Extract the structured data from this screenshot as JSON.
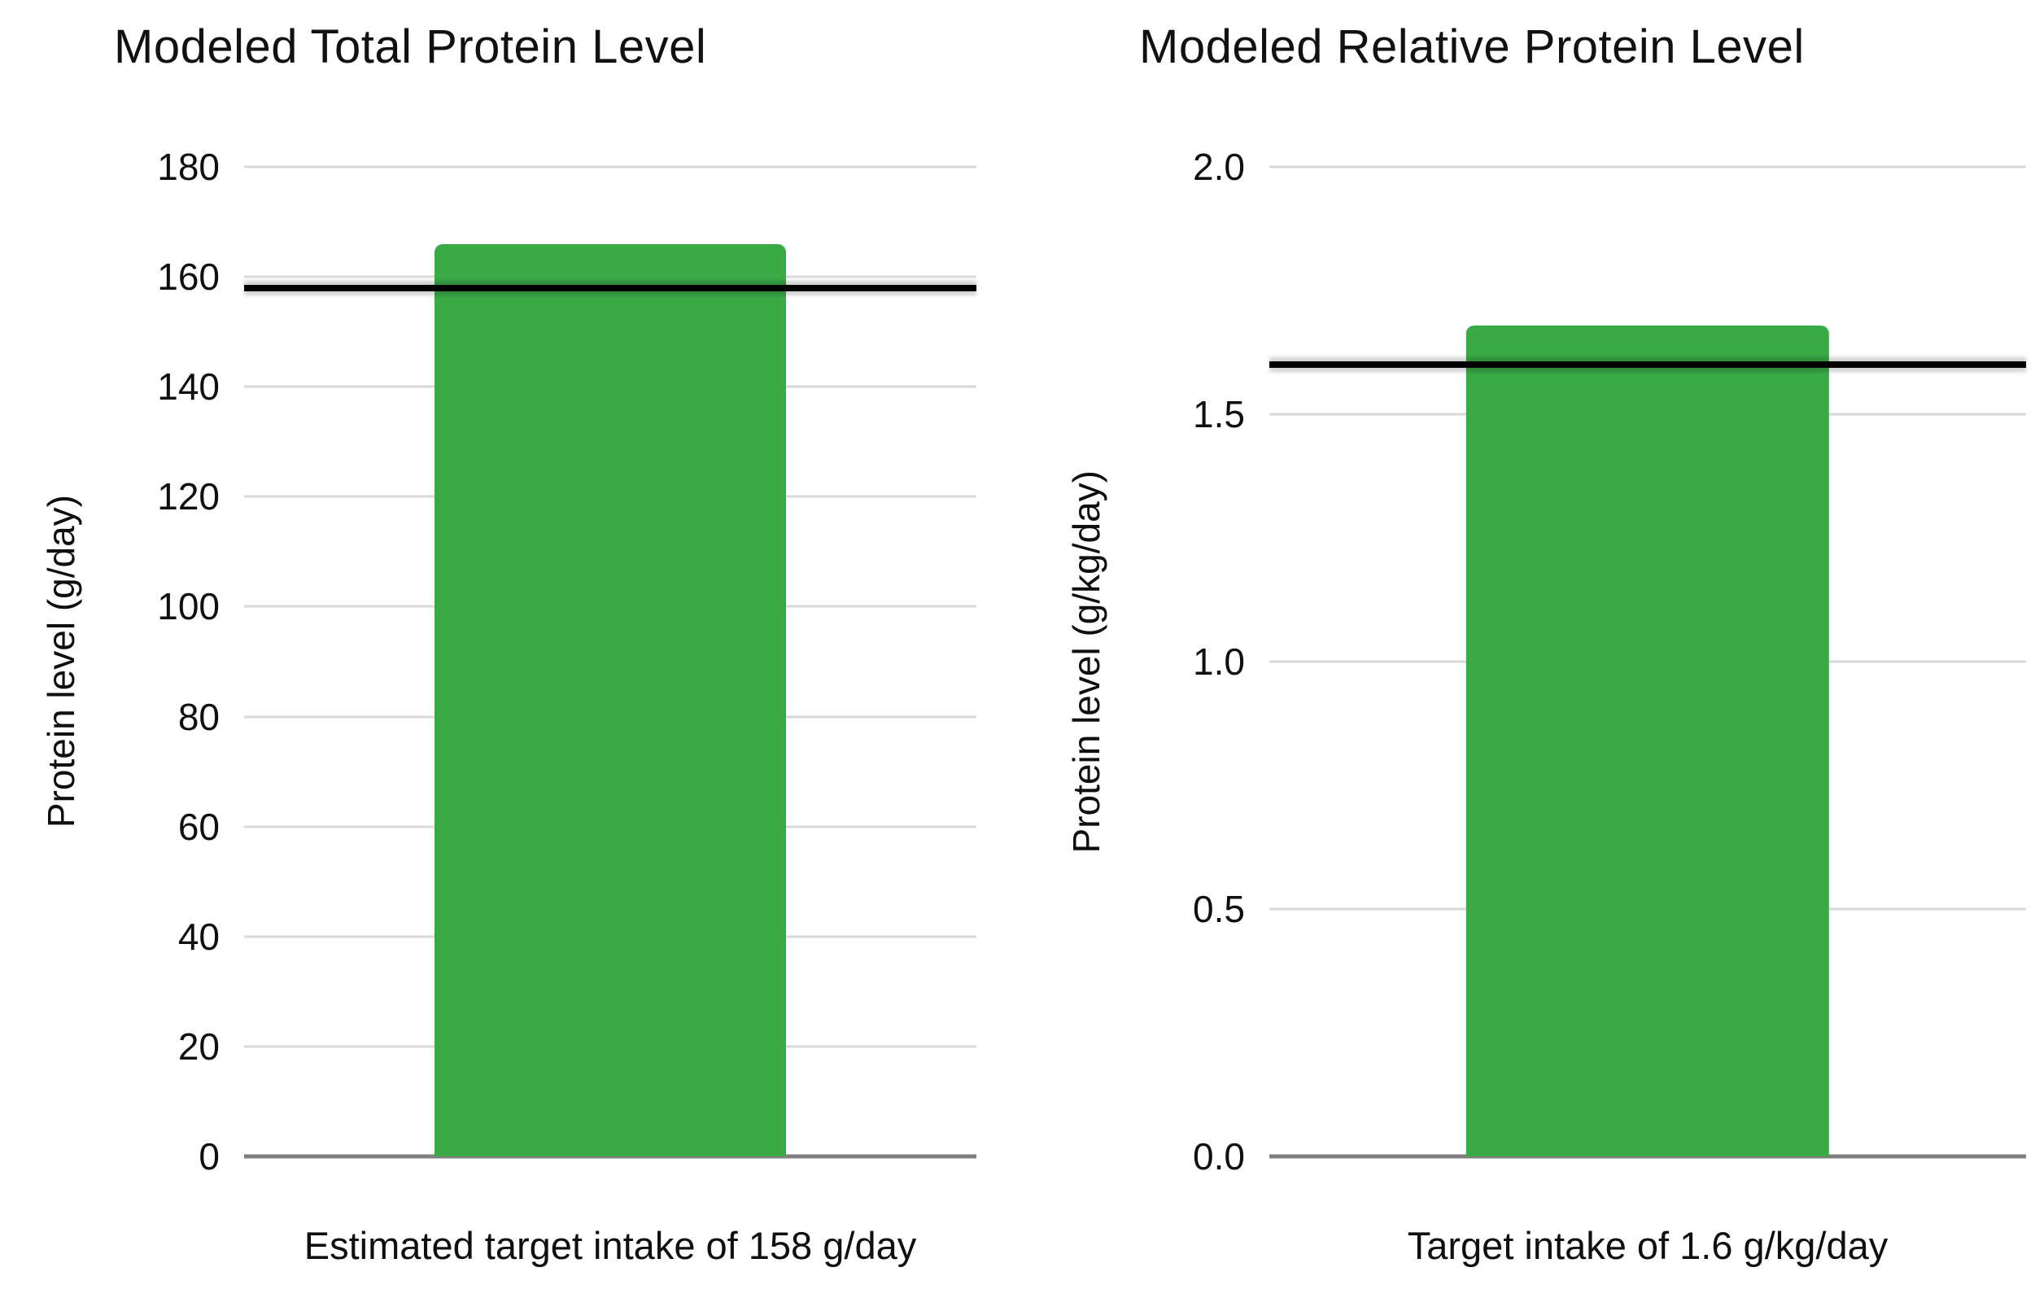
{
  "chart_data": [
    {
      "type": "bar",
      "title": "Modeled Total Protein Level",
      "categories": [
        "Estimated target intake of 158 g/day"
      ],
      "values": [
        166
      ],
      "target_line": 158,
      "xlabel": "Estimated target intake of 158 g/day",
      "ylabel": "Protein level (g/day)",
      "ylim": [
        0,
        180
      ],
      "yticks": [
        0,
        20,
        40,
        60,
        80,
        100,
        120,
        140,
        160,
        180
      ],
      "ytick_labels": [
        "0",
        "20",
        "40",
        "60",
        "80",
        "100",
        "120",
        "140",
        "160",
        "180"
      ],
      "bar_color": "#3aaa47",
      "target_line_color": "#000000",
      "grid": true,
      "legend": false
    },
    {
      "type": "bar",
      "title": "Modeled Relative Protein Level",
      "categories": [
        "Target intake of 1.6 g/kg/day"
      ],
      "values": [
        1.68
      ],
      "target_line": 1.6,
      "xlabel": "Target intake of 1.6 g/kg/day",
      "ylabel": "Protein level (g/kg/day)",
      "ylim": [
        0,
        2.0
      ],
      "yticks": [
        0,
        0.5,
        1.0,
        1.5,
        2.0
      ],
      "ytick_labels": [
        "0.0",
        "0.5",
        "1.0",
        "1.5",
        "2.0"
      ],
      "bar_color": "#3aaa47",
      "target_line_color": "#000000",
      "grid": true,
      "legend": false
    }
  ],
  "colors": {
    "background": "#ffffff",
    "gridline": "#d9d9d9",
    "axis_line": "#7f7f7f",
    "bar_green": "#3aaa47",
    "target_black": "#000000",
    "text": "#0f0f0f"
  }
}
